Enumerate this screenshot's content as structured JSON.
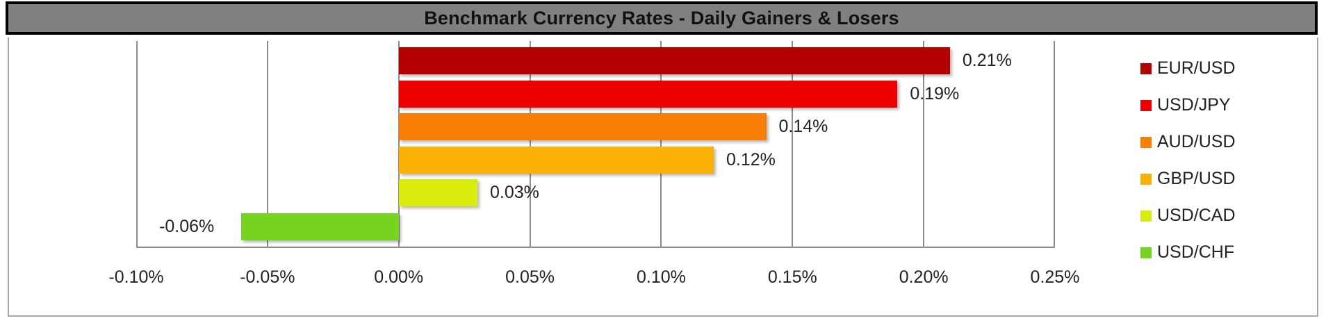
{
  "header": {
    "title": "Benchmark Currency Rates - Daily Gainers & Losers"
  },
  "chart_data": {
    "type": "bar",
    "orientation": "horizontal",
    "title": "Benchmark Currency Rates - Daily Gainers & Losers",
    "xlabel": "",
    "ylabel": "",
    "categories": [
      "EUR/USD",
      "USD/JPY",
      "AUD/USD",
      "GBP/USD",
      "USD/CAD",
      "USD/CHF"
    ],
    "values": [
      0.21,
      0.19,
      0.14,
      0.12,
      0.03,
      -0.06
    ],
    "value_labels": [
      "0.21%",
      "0.19%",
      "0.14%",
      "0.12%",
      "0.03%",
      "-0.06%"
    ],
    "colors": [
      "#b30000",
      "#ee0000",
      "#f97f07",
      "#fab005",
      "#d9ec0b",
      "#76d31f"
    ],
    "unit": "%",
    "xlim": [
      -0.1,
      0.25
    ],
    "x_ticks": [
      "-0.10%",
      "-0.05%",
      "0.00%",
      "0.05%",
      "0.10%",
      "0.15%",
      "0.20%",
      "0.25%"
    ],
    "grid": "vertical major gridlines",
    "legend_position": "right"
  },
  "legend": {
    "items": [
      {
        "label": "EUR/USD",
        "color": "#b30000"
      },
      {
        "label": "USD/JPY",
        "color": "#ee0000"
      },
      {
        "label": "AUD/USD",
        "color": "#f97f07"
      },
      {
        "label": "GBP/USD",
        "color": "#fab005"
      },
      {
        "label": "USD/CAD",
        "color": "#d9ec0b"
      },
      {
        "label": "USD/CHF",
        "color": "#76d31f"
      }
    ]
  }
}
